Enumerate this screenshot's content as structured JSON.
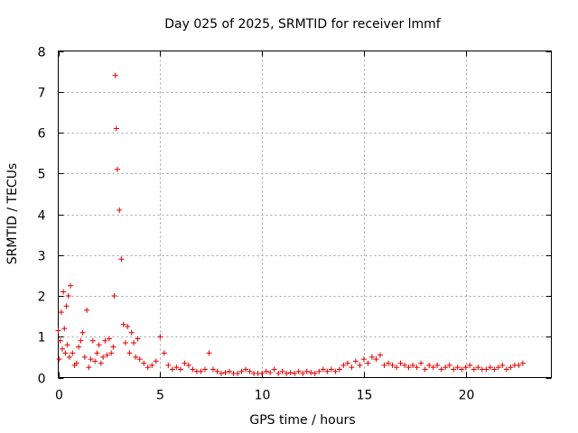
{
  "chart_data": {
    "type": "scatter",
    "title": "Day 025 of 2025, SRMTID for receiver lmmf",
    "xlabel": "GPS time / hours",
    "ylabel": "SRMTID / TECUs",
    "xlim": [
      0,
      24.2
    ],
    "ylim": [
      0,
      8
    ],
    "xticks": [
      0,
      5,
      10,
      15,
      20
    ],
    "yticks": [
      0,
      1,
      2,
      3,
      4,
      5,
      6,
      7,
      8
    ],
    "grid": true,
    "marker": "+",
    "color": "#e00000",
    "series": [
      {
        "name": "SRMTID",
        "x": [
          0.0,
          0.05,
          0.1,
          0.15,
          0.2,
          0.25,
          0.3,
          0.35,
          0.4,
          0.45,
          0.5,
          0.55,
          0.6,
          0.7,
          0.8,
          0.9,
          1.0,
          1.1,
          1.2,
          1.3,
          1.4,
          1.5,
          1.6,
          1.7,
          1.8,
          1.9,
          2.0,
          2.1,
          2.2,
          2.3,
          2.4,
          2.5,
          2.6,
          2.7,
          2.75,
          2.8,
          2.85,
          2.9,
          3.0,
          3.1,
          3.2,
          3.3,
          3.4,
          3.5,
          3.6,
          3.7,
          3.8,
          3.9,
          4.0,
          4.2,
          4.4,
          4.6,
          4.8,
          5.0,
          5.2,
          5.4,
          5.6,
          5.8,
          6.0,
          6.2,
          6.4,
          6.6,
          6.8,
          7.0,
          7.2,
          7.4,
          7.6,
          7.8,
          8.0,
          8.2,
          8.4,
          8.6,
          8.8,
          9.0,
          9.2,
          9.4,
          9.6,
          9.8,
          10.0,
          10.2,
          10.4,
          10.6,
          10.8,
          11.0,
          11.2,
          11.4,
          11.6,
          11.8,
          12.0,
          12.2,
          12.4,
          12.6,
          12.8,
          13.0,
          13.2,
          13.4,
          13.6,
          13.8,
          14.0,
          14.2,
          14.4,
          14.6,
          14.8,
          15.0,
          15.2,
          15.4,
          15.6,
          15.8,
          16.0,
          16.2,
          16.4,
          16.6,
          16.8,
          17.0,
          17.2,
          17.4,
          17.6,
          17.8,
          18.0,
          18.2,
          18.4,
          18.6,
          18.8,
          19.0,
          19.2,
          19.4,
          19.6,
          19.8,
          20.0,
          20.2,
          20.4,
          20.6,
          20.8,
          21.0,
          21.2,
          21.4,
          21.6,
          21.8,
          22.0,
          22.2,
          22.4,
          22.6,
          22.8
        ],
        "y": [
          1.15,
          0.45,
          0.9,
          1.6,
          0.7,
          2.1,
          1.2,
          0.6,
          1.75,
          0.8,
          2.0,
          0.5,
          2.25,
          0.6,
          0.3,
          0.35,
          0.75,
          0.9,
          1.1,
          0.5,
          1.65,
          0.25,
          0.45,
          0.9,
          0.4,
          0.6,
          0.8,
          0.35,
          0.5,
          0.9,
          0.55,
          0.95,
          0.6,
          0.75,
          2.0,
          7.4,
          6.1,
          5.1,
          4.1,
          2.9,
          1.3,
          0.85,
          1.25,
          0.6,
          1.1,
          0.85,
          0.5,
          0.95,
          0.45,
          0.35,
          0.25,
          0.3,
          0.4,
          1.0,
          0.6,
          0.3,
          0.2,
          0.25,
          0.2,
          0.35,
          0.3,
          0.2,
          0.15,
          0.15,
          0.2,
          0.6,
          0.2,
          0.15,
          0.1,
          0.12,
          0.15,
          0.1,
          0.1,
          0.15,
          0.2,
          0.15,
          0.1,
          0.1,
          0.1,
          0.15,
          0.12,
          0.2,
          0.1,
          0.15,
          0.1,
          0.12,
          0.1,
          0.15,
          0.1,
          0.15,
          0.12,
          0.1,
          0.15,
          0.2,
          0.15,
          0.2,
          0.15,
          0.2,
          0.3,
          0.35,
          0.25,
          0.4,
          0.3,
          0.45,
          0.35,
          0.5,
          0.45,
          0.55,
          0.3,
          0.35,
          0.3,
          0.25,
          0.35,
          0.3,
          0.25,
          0.3,
          0.25,
          0.35,
          0.2,
          0.3,
          0.25,
          0.3,
          0.2,
          0.25,
          0.3,
          0.2,
          0.25,
          0.2,
          0.25,
          0.3,
          0.2,
          0.25,
          0.2,
          0.2,
          0.25,
          0.2,
          0.25,
          0.3,
          0.2,
          0.25,
          0.3,
          0.3,
          0.35
        ]
      }
    ]
  }
}
